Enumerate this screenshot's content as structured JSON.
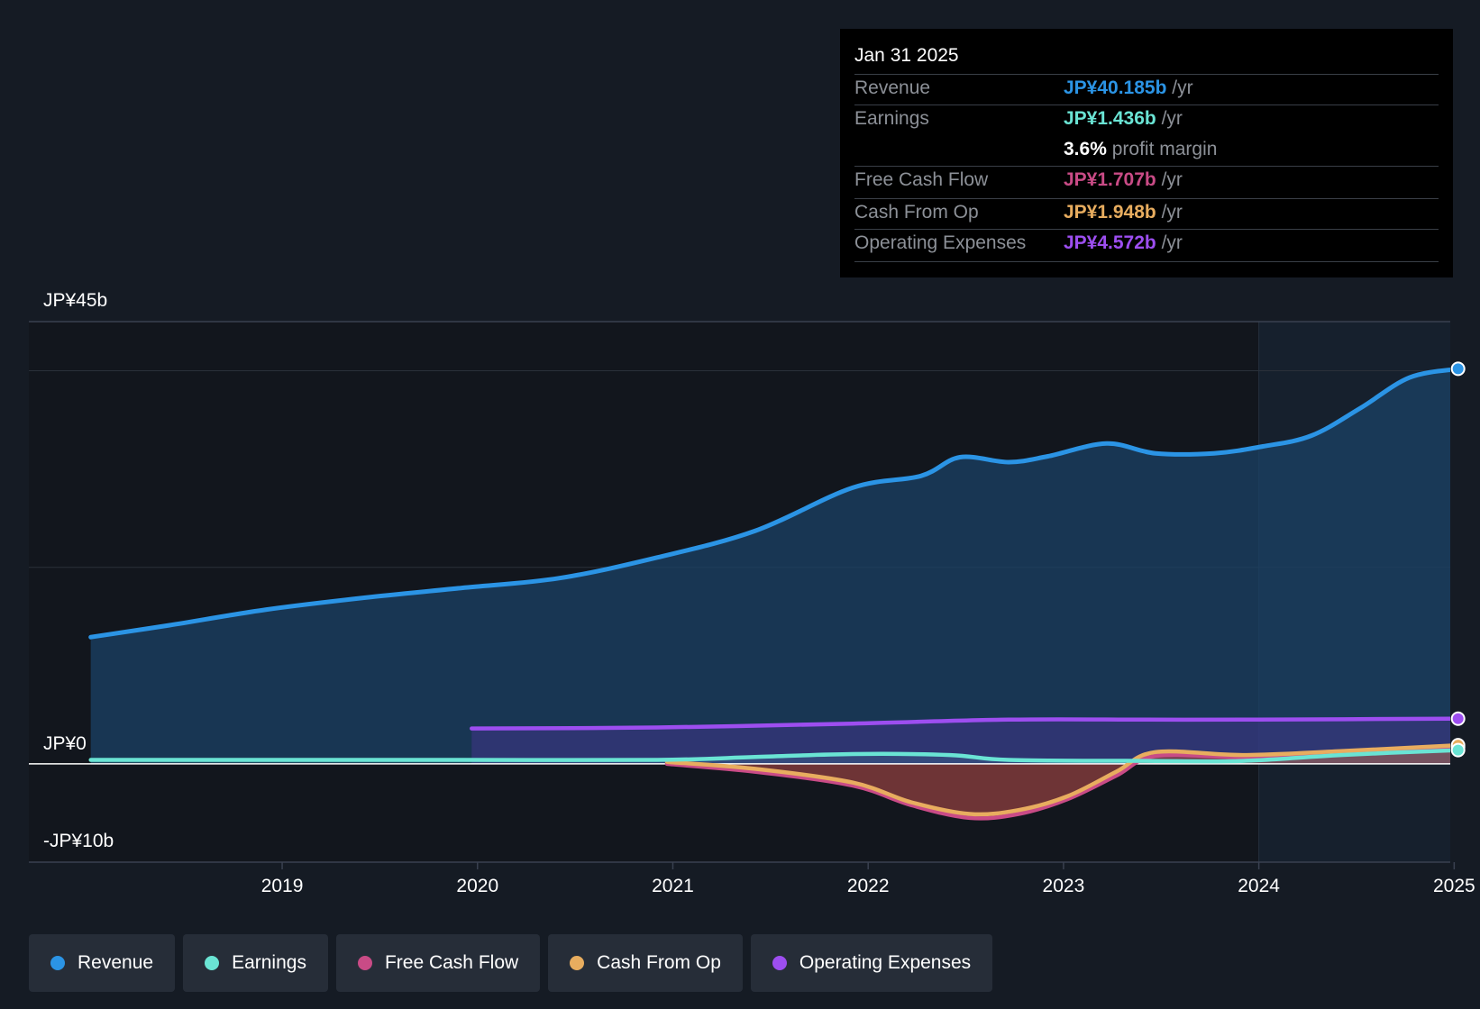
{
  "chart_data": {
    "type": "area",
    "y_labels": {
      "top": "JP¥45b",
      "zero": "JP¥0",
      "bottom": "-JP¥10b"
    },
    "ylim": [
      -10,
      45
    ],
    "x_ticks": [
      "2019",
      "2020",
      "2021",
      "2022",
      "2023",
      "2024",
      "2025"
    ],
    "past_shading_start": "2024",
    "series": [
      {
        "name": "Revenue",
        "color": "#2b94e5",
        "points": [
          [
            2018.1,
            12.9
          ],
          [
            2018.5,
            14.1
          ],
          [
            2019.0,
            15.7
          ],
          [
            2019.5,
            16.9
          ],
          [
            2020.0,
            17.9
          ],
          [
            2020.5,
            18.9
          ],
          [
            2021.0,
            21.0
          ],
          [
            2021.5,
            23.7
          ],
          [
            2022.0,
            28.1
          ],
          [
            2022.35,
            29.3
          ],
          [
            2022.55,
            31.2
          ],
          [
            2022.8,
            30.7
          ],
          [
            2023.0,
            31.3
          ],
          [
            2023.3,
            32.6
          ],
          [
            2023.55,
            31.6
          ],
          [
            2023.85,
            31.6
          ],
          [
            2024.1,
            32.3
          ],
          [
            2024.35,
            33.4
          ],
          [
            2024.6,
            36.2
          ],
          [
            2024.85,
            39.3
          ],
          [
            2025.1,
            40.2
          ]
        ]
      },
      {
        "name": "Earnings",
        "color": "#6ae4d4",
        "points": [
          [
            2018.1,
            0.4
          ],
          [
            2019.0,
            0.4
          ],
          [
            2020.0,
            0.4
          ],
          [
            2021.0,
            0.4
          ],
          [
            2021.5,
            0.7
          ],
          [
            2022.0,
            1.0
          ],
          [
            2022.5,
            0.9
          ],
          [
            2022.8,
            0.4
          ],
          [
            2023.5,
            0.3
          ],
          [
            2024.0,
            0.3
          ],
          [
            2024.5,
            0.9
          ],
          [
            2025.1,
            1.4
          ]
        ]
      },
      {
        "name": "Free Cash Flow",
        "color": "#c94b86",
        "points": [
          [
            2021.05,
            0.0
          ],
          [
            2021.5,
            -0.8
          ],
          [
            2022.0,
            -2.2
          ],
          [
            2022.3,
            -4.2
          ],
          [
            2022.6,
            -5.5
          ],
          [
            2022.85,
            -5.1
          ],
          [
            2023.1,
            -3.6
          ],
          [
            2023.35,
            -1.2
          ],
          [
            2023.55,
            0.8
          ],
          [
            2024.0,
            0.7
          ],
          [
            2024.5,
            1.1
          ],
          [
            2025.1,
            1.7
          ]
        ]
      },
      {
        "name": "Cash From Op",
        "color": "#e8ad5f",
        "points": [
          [
            2021.05,
            0.2
          ],
          [
            2021.5,
            -0.5
          ],
          [
            2022.0,
            -1.9
          ],
          [
            2022.3,
            -3.9
          ],
          [
            2022.6,
            -5.1
          ],
          [
            2022.85,
            -4.7
          ],
          [
            2023.1,
            -3.3
          ],
          [
            2023.35,
            -0.8
          ],
          [
            2023.55,
            1.2
          ],
          [
            2024.0,
            0.9
          ],
          [
            2024.5,
            1.3
          ],
          [
            2025.1,
            1.9
          ]
        ]
      },
      {
        "name": "Operating Expenses",
        "color": "#9d4ef0",
        "points": [
          [
            2020.05,
            3.6
          ],
          [
            2021.0,
            3.7
          ],
          [
            2022.0,
            4.1
          ],
          [
            2022.8,
            4.5
          ],
          [
            2023.5,
            4.5
          ],
          [
            2024.0,
            4.5
          ],
          [
            2025.1,
            4.6
          ]
        ]
      }
    ]
  },
  "tooltip": {
    "date": "Jan 31 2025",
    "rows": [
      {
        "label": "Revenue",
        "value": "JP¥40.185b",
        "unit": "/yr",
        "color": "#2b94e5"
      },
      {
        "label": "Earnings",
        "value": "JP¥1.436b",
        "unit": "/yr",
        "color": "#6ae4d4"
      },
      {
        "label": "",
        "value": "3.6%",
        "unit": "profit margin",
        "color": "#ffffff"
      },
      {
        "label": "Free Cash Flow",
        "value": "JP¥1.707b",
        "unit": "/yr",
        "color": "#c94b86"
      },
      {
        "label": "Cash From Op",
        "value": "JP¥1.948b",
        "unit": "/yr",
        "color": "#e8ad5f"
      },
      {
        "label": "Operating Expenses",
        "value": "JP¥4.572b",
        "unit": "/yr",
        "color": "#9d4ef0"
      }
    ]
  },
  "legend": [
    {
      "label": "Revenue",
      "color": "#2b94e5"
    },
    {
      "label": "Earnings",
      "color": "#6ae4d4"
    },
    {
      "label": "Free Cash Flow",
      "color": "#c94b86"
    },
    {
      "label": "Cash From Op",
      "color": "#e8ad5f"
    },
    {
      "label": "Operating Expenses",
      "color": "#9d4ef0"
    }
  ]
}
